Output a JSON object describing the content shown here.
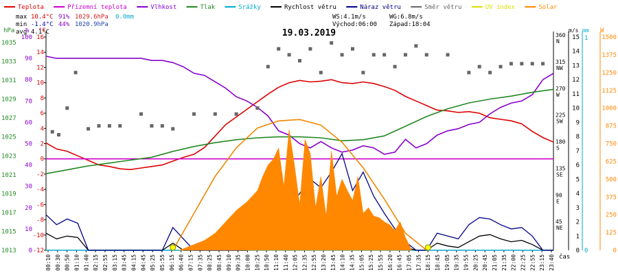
{
  "header": {
    "date": "19.03.2019",
    "stats": {
      "max_label": "max",
      "min_label": "min",
      "avg_label": "avg",
      "max_temp": "10.4°C",
      "max_hum": "91%",
      "max_press": "1029.6hPa",
      "max_rain": "0.0mm",
      "min_temp": "-1.4°C",
      "min_hum": "44%",
      "min_press": "1020.9hPa",
      "avg_temp": "4.1°C"
    },
    "wind": {
      "ws": "WS:4.1m/s",
      "wg": "WG:6.8m/s",
      "sunrise": "Východ:06:00",
      "sunset": "Západ:18:04"
    }
  },
  "legend": [
    {
      "label": "Teplota",
      "color": "#dd0000"
    },
    {
      "label": "Přízemní teplota",
      "color": "#cc00cc"
    },
    {
      "label": "Vlhkost",
      "color": "#8800cc"
    },
    {
      "label": "Tlak",
      "color": "#228822"
    },
    {
      "label": "Srážky",
      "color": "#00aacc"
    },
    {
      "label": "Rychlost větru",
      "color": "#000000"
    },
    {
      "label": "Náraz větru",
      "color": "#000088"
    },
    {
      "label": "Směr větru",
      "color": "#666666"
    },
    {
      "label": "UV index",
      "color": "#dddd00"
    },
    {
      "label": "Solar",
      "color": "#ff8800"
    }
  ],
  "axes": {
    "units": {
      "press": "hPa",
      "hum": "%",
      "temp": "°C",
      "ws": "m/s",
      "rain": "mm",
      "solar": "W"
    },
    "press_ticks": [
      "1035",
      "1033",
      "1031",
      "1029",
      "1027",
      "1025",
      "1023",
      "1021",
      "1019",
      "1017",
      "1015",
      "1013"
    ],
    "hum_ticks": [
      "100",
      "90",
      "80",
      "70",
      "60",
      "50",
      "40",
      "30",
      "20",
      "10",
      "0"
    ],
    "temp_ticks": [
      "16",
      "14",
      "12",
      "10",
      "8",
      "6",
      "4",
      "2",
      "0",
      "-2",
      "-4",
      "-6",
      "-8",
      "-10",
      "-12"
    ],
    "dir_labels": [
      {
        "deg": "360",
        "dir": "N"
      },
      {
        "deg": "315",
        "dir": "NW"
      },
      {
        "deg": "270",
        "dir": "W"
      },
      {
        "deg": "225",
        "dir": "SW"
      },
      {
        "deg": "180",
        "dir": "S"
      },
      {
        "deg": "135",
        "dir": "SE"
      },
      {
        "deg": "90",
        "dir": "E"
      },
      {
        "deg": "45",
        "dir": "NE"
      }
    ],
    "ws_ticks": [
      "15",
      "14",
      "13",
      "12",
      "11",
      "10",
      "9",
      "8",
      "7",
      "6",
      "5",
      "4",
      "3",
      "2",
      "1",
      "0"
    ],
    "rain_ticks": [
      "1",
      "0"
    ],
    "solar_ticks": [
      "1500",
      "1375",
      "1250",
      "1125",
      "1000",
      "875",
      "750",
      "625",
      "500",
      "375",
      "250",
      "125",
      "0"
    ],
    "time_ticks": [
      "00:10",
      "00:30",
      "00:50",
      "01:10",
      "01:40",
      "02:15",
      "02:55",
      "03:15",
      "03:45",
      "04:15",
      "04:45",
      "05:25",
      "05:55",
      "06:15",
      "06:40",
      "07:15",
      "07:35",
      "08:25",
      "08:45",
      "09:10",
      "09:35",
      "10:00",
      "10:25",
      "10:50",
      "11:10",
      "11:40",
      "12:05",
      "12:35",
      "12:55",
      "13:20",
      "13:45",
      "14:10",
      "14:35",
      "15:05",
      "15:25",
      "15:55",
      "16:20",
      "16:45",
      "17:05",
      "17:35",
      "18:15",
      "18:45",
      "19:05",
      "19:35",
      "19:55",
      "20:25",
      "20:45",
      "21:05",
      "21:35",
      "22:00",
      "22:25",
      "22:55",
      "23:15",
      "23:40"
    ],
    "time_label": "čas"
  },
  "chart_data": {
    "type": "line",
    "title": "19.03.2019",
    "x_unit": "hour",
    "ylim_temp": [
      -12,
      16
    ],
    "ylim_hum": [
      0,
      100
    ],
    "ylim_press": [
      1013,
      1035
    ],
    "ylim_ws": [
      0,
      15
    ],
    "ylim_solar": [
      0,
      1500
    ],
    "ylim_dir": [
      0,
      360
    ],
    "grid": false,
    "series": [
      {
        "name": "Teplota",
        "color": "#dd0000",
        "axis": "temp",
        "x": [
          0,
          0.5,
          1,
          1.5,
          2,
          2.5,
          3,
          3.5,
          4,
          4.5,
          5,
          5.5,
          6,
          6.5,
          7,
          7.5,
          8,
          8.5,
          9,
          9.5,
          10,
          10.5,
          11,
          11.5,
          12,
          12.5,
          13,
          13.5,
          14,
          14.5,
          15,
          15.5,
          16,
          16.5,
          17,
          17.5,
          18,
          18.5,
          19,
          19.5,
          20,
          20.5,
          21,
          21.5,
          22,
          22.5,
          23,
          23.5,
          24
        ],
        "values": [
          2.1,
          1.3,
          1.0,
          0.4,
          -0.2,
          -0.8,
          -1.0,
          -1.3,
          -1.4,
          -1.2,
          -1.0,
          -0.8,
          -0.3,
          0.2,
          0.6,
          1.5,
          3.0,
          4.5,
          5.5,
          6.5,
          7.5,
          8.5,
          9.4,
          10.0,
          10.3,
          10.1,
          10.2,
          10.4,
          10.0,
          9.9,
          10.1,
          9.9,
          9.5,
          9.0,
          8.2,
          7.6,
          7.0,
          6.4,
          6.3,
          6.1,
          6.2,
          6.0,
          5.4,
          5.2,
          5.0,
          4.6,
          3.6,
          2.8,
          2.2
        ]
      },
      {
        "name": "Přízemní teplota",
        "color": "#cc00cc",
        "axis": "temp",
        "x": [
          0,
          24
        ],
        "values": [
          0,
          0
        ]
      },
      {
        "name": "Vlhkost",
        "color": "#8800cc",
        "axis": "hum",
        "x": [
          0,
          0.5,
          1,
          1.5,
          2,
          2.5,
          3,
          3.5,
          4,
          4.5,
          5,
          5.5,
          6,
          6.5,
          7,
          7.5,
          8,
          8.5,
          9,
          9.5,
          10,
          10.5,
          11,
          11.5,
          12,
          12.5,
          13,
          13.5,
          14,
          14.5,
          15,
          15.5,
          16,
          16.5,
          17,
          17.5,
          18,
          18.5,
          19,
          19.5,
          20,
          20.5,
          21,
          21.5,
          22,
          22.5,
          23,
          23.5,
          24
        ],
        "values": [
          91,
          90,
          90,
          90,
          90,
          90,
          90,
          90,
          90,
          90,
          89,
          89,
          88,
          86,
          83,
          82,
          79,
          76,
          72,
          70,
          67,
          63,
          56,
          54,
          50,
          48,
          51,
          48,
          46,
          47,
          49,
          48,
          45,
          46,
          52,
          48,
          50,
          54,
          56,
          57,
          59,
          60,
          64,
          67,
          69,
          70,
          73,
          80,
          83
        ]
      },
      {
        "name": "Tlak",
        "color": "#228822",
        "axis": "press",
        "x": [
          0,
          1,
          2,
          3,
          4,
          5,
          6,
          7,
          8,
          9,
          10,
          11,
          12,
          13,
          14,
          15,
          16,
          17,
          18,
          19,
          20,
          21,
          22,
          23,
          24
        ],
        "values": [
          1020.9,
          1021.3,
          1021.7,
          1022.0,
          1022.3,
          1022.6,
          1023.2,
          1023.7,
          1024.1,
          1024.4,
          1024.6,
          1024.7,
          1024.7,
          1024.6,
          1024.3,
          1024.4,
          1024.8,
          1025.8,
          1026.8,
          1027.6,
          1028.2,
          1028.6,
          1028.9,
          1029.3,
          1029.6
        ]
      },
      {
        "name": "Srážky",
        "color": "#00aacc",
        "axis": "rain",
        "x": [
          0,
          24
        ],
        "values": [
          0,
          0
        ]
      },
      {
        "name": "Rychlost větru",
        "color": "#000000",
        "axis": "ws",
        "x": [
          0,
          0.5,
          1,
          1.5,
          2,
          2.5,
          3,
          3.5,
          4,
          4.5,
          5,
          5.5,
          6,
          6.5,
          7,
          7.5,
          8,
          8.5,
          9,
          9.5,
          10,
          10.5,
          11,
          11.5,
          12,
          12.5,
          13,
          13.5,
          14,
          14.5,
          15,
          15.5,
          16,
          16.5,
          17,
          17.5,
          18,
          18.5,
          19,
          19.5,
          20,
          20.5,
          21,
          21.5,
          22,
          22.5,
          23,
          23.5,
          24
        ],
        "values": [
          1.2,
          0.8,
          1.0,
          0.9,
          0,
          0,
          0,
          0,
          0,
          0,
          0,
          0,
          0.5,
          0,
          0,
          0,
          0,
          0,
          0,
          0,
          0.6,
          0.5,
          0.7,
          1.2,
          1.5,
          1.8,
          1.7,
          2.2,
          2.4,
          2.8,
          2.4,
          1.8,
          0.8,
          0.7,
          0.2,
          0,
          0,
          0.5,
          0.3,
          0.2,
          0.6,
          1.0,
          1.1,
          0.8,
          0.6,
          0.7,
          0.4,
          0,
          0
        ]
      },
      {
        "name": "Náraz větru",
        "color": "#000088",
        "axis": "ws",
        "x": [
          0,
          0.5,
          1,
          1.5,
          2,
          2.5,
          3,
          3.5,
          4,
          4.5,
          5,
          5.5,
          6,
          6.5,
          7,
          7.5,
          8,
          8.5,
          9,
          9.5,
          10,
          10.5,
          11,
          11.5,
          12,
          12.5,
          13,
          13.5,
          14,
          14.5,
          15,
          15.5,
          16,
          16.5,
          17,
          17.5,
          18,
          18.5,
          19,
          19.5,
          20,
          20.5,
          21,
          21.5,
          22,
          22.5,
          23,
          23.5,
          24
        ],
        "values": [
          2.5,
          1.8,
          2.2,
          1.9,
          0,
          0,
          0,
          0,
          0,
          0,
          0,
          0,
          1.6,
          0.8,
          0,
          0,
          0,
          0,
          0,
          0,
          1.6,
          1.8,
          2.5,
          3.0,
          4.0,
          5.0,
          4.4,
          5.5,
          6.8,
          4.2,
          5.5,
          3.8,
          2.6,
          1.5,
          0.6,
          0,
          0,
          1.2,
          1.0,
          0.8,
          1.8,
          2.3,
          2.2,
          1.8,
          1.5,
          1.6,
          1.0,
          0,
          0
        ]
      },
      {
        "name": "Směr větru",
        "color": "#666666",
        "axis": "dir",
        "type": "scatter",
        "x": [
          0.3,
          0.6,
          1.0,
          1.4,
          2.0,
          2.5,
          3.0,
          3.5,
          4.5,
          5.0,
          5.5,
          6.0,
          7.0,
          8.0,
          9.0,
          10.0,
          10.5,
          11.0,
          11.5,
          12.0,
          12.5,
          13.0,
          13.5,
          14.0,
          14.5,
          15.0,
          15.5,
          16.0,
          16.5,
          17.0,
          17.5,
          18.0,
          19.0,
          20.0,
          20.5,
          21.0,
          21.5,
          22.0,
          22.5,
          23.0,
          23.5
        ],
        "values": [
          200,
          195,
          240,
          300,
          205,
          210,
          210,
          210,
          230,
          210,
          210,
          205,
          230,
          230,
          230,
          240,
          310,
          340,
          330,
          320,
          340,
          300,
          350,
          330,
          340,
          300,
          330,
          330,
          310,
          330,
          345,
          330,
          330,
          300,
          310,
          300,
          310,
          315,
          315,
          315,
          315
        ]
      },
      {
        "name": "Solar",
        "color": "#ff8800",
        "axis": "solar",
        "type": "area",
        "x": [
          6.3,
          7,
          7.5,
          8,
          8.5,
          9,
          9.5,
          10,
          10.25,
          10.5,
          10.75,
          11,
          11.25,
          11.5,
          11.75,
          12,
          12.25,
          12.5,
          12.75,
          13,
          13.25,
          13.5,
          13.75,
          14,
          14.25,
          14.5,
          14.75,
          15,
          15.25,
          15.5,
          15.75,
          16,
          16.25,
          16.5,
          16.75,
          17,
          17.3
        ],
        "values": [
          0,
          40,
          70,
          120,
          200,
          280,
          340,
          420,
          520,
          600,
          640,
          720,
          450,
          850,
          600,
          320,
          780,
          680,
          300,
          520,
          240,
          700,
          380,
          500,
          420,
          350,
          520,
          260,
          300,
          240,
          230,
          200,
          180,
          140,
          200,
          90,
          0
        ]
      },
      {
        "name": "Solar",
        "color": "#ee8800",
        "axis": "solar",
        "type": "line",
        "x": [
          6.0,
          7.0,
          8.0,
          9.0,
          10.0,
          11.0,
          12.0,
          13.0,
          14.0,
          15.0,
          16.0,
          17.0,
          18.0
        ],
        "values": [
          0,
          260,
          520,
          720,
          860,
          910,
          920,
          880,
          760,
          580,
          360,
          120,
          0
        ]
      }
    ]
  }
}
